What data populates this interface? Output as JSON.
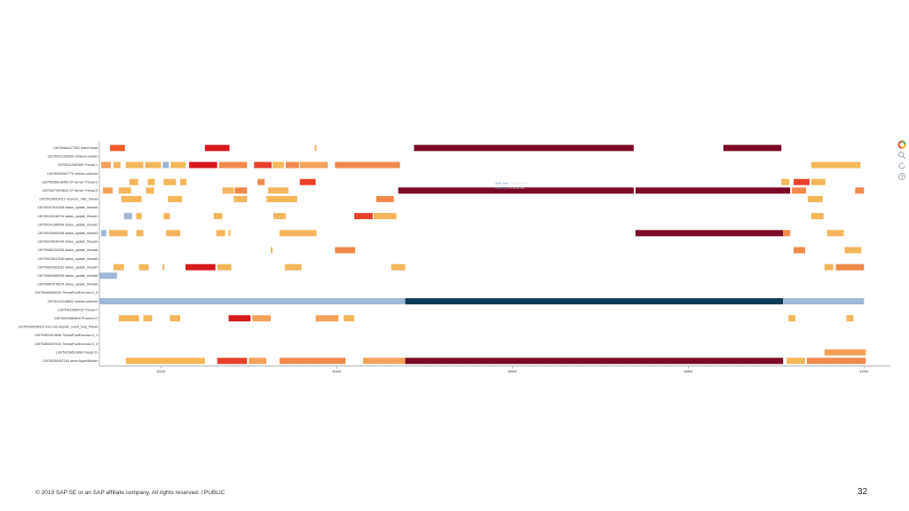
{
  "chart_data": {
    "type": "gantt",
    "xticks": [
      "30200",
      "30400",
      "30600",
      "30800",
      "31000"
    ],
    "xlim": [
      30130,
      31030
    ],
    "rows": [
      "139750664477632 MainThread",
      "139750021153536 inframon-worker",
      "139750312480480 Thread-1",
      "139750093367776 metrics-collector",
      "139750286918400 CP Server Thread-2",
      "139750274929616 CP Server Thread-3",
      "139750286924112 resource_offer_thread",
      "139750207841408 status_update_thread0",
      "139750244448704 status_update_thread1",
      "139750241385008 status_update_thread2",
      "139750230852096 status_update_thread3",
      "139750476039744 status_update_thread4",
      "139754680254336 status_update_thread6",
      "139754676647040 status_update_thread5",
      "139754802981632 status_update_thread7",
      "139754804068928 status_update_thread8",
      "139754807078224 status_update_thread9",
      "139750463963200 ThreadPoolExecutor-0_0",
      "139754141168832 metrics-collector",
      "139754115665720 Thread-7",
      "139750510669616 Process-IO",
      "139754106058310 bolt.core.asyncio_event_loop_thread",
      "139754591613696 ThreadPoolExecutor-0_1",
      "139754800297920 ThreadPoolExecutor-0_3",
      "139750258510808 Thread-11",
      "139750350057184 raven.AsyncWorker"
    ],
    "tasks": [
      {
        "row": 0,
        "start": 30142,
        "end": 30159,
        "c": "#ef5b2b"
      },
      {
        "row": 0,
        "start": 30250,
        "end": 30278,
        "c": "#d7191c"
      },
      {
        "row": 0,
        "start": 30375,
        "end": 30377,
        "c": "#f4b65a"
      },
      {
        "row": 0,
        "start": 30488,
        "end": 30738,
        "c": "#7a0a26"
      },
      {
        "row": 0,
        "start": 30840,
        "end": 30906,
        "c": "#7a0a26"
      },
      {
        "row": 2,
        "start": 30132,
        "end": 30143,
        "c": "#f4a259"
      },
      {
        "row": 2,
        "start": 30146,
        "end": 30154,
        "c": "#f4b65a"
      },
      {
        "row": 2,
        "start": 30160,
        "end": 30180,
        "c": "#f4b65a"
      },
      {
        "row": 2,
        "start": 30182,
        "end": 30200,
        "c": "#f4b65a"
      },
      {
        "row": 2,
        "start": 30202,
        "end": 30209,
        "c": "#9fb8d5"
      },
      {
        "row": 2,
        "start": 30211,
        "end": 30228,
        "c": "#f4b65a"
      },
      {
        "row": 2,
        "start": 30232,
        "end": 30264,
        "c": "#d7191c"
      },
      {
        "row": 2,
        "start": 30266,
        "end": 30298,
        "c": "#f08a4b"
      },
      {
        "row": 2,
        "start": 30306,
        "end": 30326,
        "c": "#e8412b"
      },
      {
        "row": 2,
        "start": 30327,
        "end": 30340,
        "c": "#f4b65a"
      },
      {
        "row": 2,
        "start": 30342,
        "end": 30357,
        "c": "#f08a4b"
      },
      {
        "row": 2,
        "start": 30358,
        "end": 30390,
        "c": "#f4a259"
      },
      {
        "row": 2,
        "start": 30398,
        "end": 30472,
        "c": "#f08a4b"
      },
      {
        "row": 2,
        "start": 30940,
        "end": 30996,
        "c": "#f4b65a"
      },
      {
        "row": 4,
        "start": 30164,
        "end": 30174,
        "c": "#f4b65a"
      },
      {
        "row": 4,
        "start": 30185,
        "end": 30193,
        "c": "#f4b65a"
      },
      {
        "row": 4,
        "start": 30203,
        "end": 30217,
        "c": "#f4b65a"
      },
      {
        "row": 4,
        "start": 30222,
        "end": 30229,
        "c": "#f4b65a"
      },
      {
        "row": 4,
        "start": 30310,
        "end": 30318,
        "c": "#f08a4b"
      },
      {
        "row": 4,
        "start": 30358,
        "end": 30376,
        "c": "#e8412b"
      },
      {
        "row": 4,
        "start": 30906,
        "end": 30915,
        "c": "#f4b65a"
      },
      {
        "row": 4,
        "start": 30920,
        "end": 30938,
        "c": "#e8412b"
      },
      {
        "row": 4,
        "start": 30940,
        "end": 30956,
        "c": "#f4b65a"
      },
      {
        "row": 5,
        "start": 30134,
        "end": 30145,
        "c": "#f4a259"
      },
      {
        "row": 5,
        "start": 30152,
        "end": 30166,
        "c": "#f4b65a"
      },
      {
        "row": 5,
        "start": 30183,
        "end": 30192,
        "c": "#f4b65a"
      },
      {
        "row": 5,
        "start": 30270,
        "end": 30283,
        "c": "#f4b65a"
      },
      {
        "row": 5,
        "start": 30284,
        "end": 30298,
        "c": "#f08a4b"
      },
      {
        "row": 5,
        "start": 30322,
        "end": 30345,
        "c": "#f4b65a"
      },
      {
        "row": 5,
        "start": 30470,
        "end": 30738,
        "c": "#7a0a26"
      },
      {
        "row": 5,
        "start": 30740,
        "end": 30916,
        "c": "#7a0a26"
      },
      {
        "row": 5,
        "start": 30918,
        "end": 30934,
        "c": "#f08a4b"
      },
      {
        "row": 5,
        "start": 30990,
        "end": 31000,
        "c": "#f08a4b"
      },
      {
        "row": 6,
        "start": 30155,
        "end": 30178,
        "c": "#f4b65a"
      },
      {
        "row": 6,
        "start": 30208,
        "end": 30224,
        "c": "#f4b65a"
      },
      {
        "row": 6,
        "start": 30283,
        "end": 30298,
        "c": "#f4b65a"
      },
      {
        "row": 6,
        "start": 30320,
        "end": 30355,
        "c": "#f4b65a"
      },
      {
        "row": 6,
        "start": 30445,
        "end": 30465,
        "c": "#f08a4b"
      },
      {
        "row": 6,
        "start": 30936,
        "end": 30953,
        "c": "#f4b65a"
      },
      {
        "row": 8,
        "start": 30158,
        "end": 30167,
        "c": "#9fb8d5"
      },
      {
        "row": 8,
        "start": 30172,
        "end": 30178,
        "c": "#f4b65a"
      },
      {
        "row": 8,
        "start": 30203,
        "end": 30210,
        "c": "#f4b65a"
      },
      {
        "row": 8,
        "start": 30260,
        "end": 30270,
        "c": "#f4b65a"
      },
      {
        "row": 8,
        "start": 30328,
        "end": 30342,
        "c": "#f4b65a"
      },
      {
        "row": 8,
        "start": 30420,
        "end": 30441,
        "c": "#e8412b"
      },
      {
        "row": 8,
        "start": 30442,
        "end": 30468,
        "c": "#f4b65a"
      },
      {
        "row": 8,
        "start": 30940,
        "end": 30954,
        "c": "#f4b65a"
      },
      {
        "row": 10,
        "start": 30132,
        "end": 30138,
        "c": "#9fb8d5"
      },
      {
        "row": 10,
        "start": 30141,
        "end": 30162,
        "c": "#f4b65a"
      },
      {
        "row": 10,
        "start": 30172,
        "end": 30180,
        "c": "#f4b65a"
      },
      {
        "row": 10,
        "start": 30206,
        "end": 30222,
        "c": "#f4b65a"
      },
      {
        "row": 10,
        "start": 30263,
        "end": 30273,
        "c": "#f4b65a"
      },
      {
        "row": 10,
        "start": 30277,
        "end": 30279,
        "c": "#f4b65a"
      },
      {
        "row": 10,
        "start": 30335,
        "end": 30377,
        "c": "#f4b65a"
      },
      {
        "row": 10,
        "start": 30740,
        "end": 30908,
        "c": "#7a0a26"
      },
      {
        "row": 10,
        "start": 30908,
        "end": 30916,
        "c": "#f08a4b"
      },
      {
        "row": 10,
        "start": 30958,
        "end": 30977,
        "c": "#f4b65a"
      },
      {
        "row": 12,
        "start": 30325,
        "end": 30327,
        "c": "#f4b65a"
      },
      {
        "row": 12,
        "start": 30398,
        "end": 30421,
        "c": "#f08a4b"
      },
      {
        "row": 12,
        "start": 30920,
        "end": 30933,
        "c": "#f08a4b"
      },
      {
        "row": 12,
        "start": 30978,
        "end": 30997,
        "c": "#f4b65a"
      },
      {
        "row": 14,
        "start": 30146,
        "end": 30158,
        "c": "#f4b65a"
      },
      {
        "row": 14,
        "start": 30175,
        "end": 30186,
        "c": "#f4b65a"
      },
      {
        "row": 14,
        "start": 30202,
        "end": 30204,
        "c": "#f4b65a"
      },
      {
        "row": 14,
        "start": 30228,
        "end": 30262,
        "c": "#d7191c"
      },
      {
        "row": 14,
        "start": 30264,
        "end": 30280,
        "c": "#f4b65a"
      },
      {
        "row": 14,
        "start": 30341,
        "end": 30360,
        "c": "#f4b65a"
      },
      {
        "row": 14,
        "start": 30462,
        "end": 30478,
        "c": "#f4b65a"
      },
      {
        "row": 14,
        "start": 30955,
        "end": 30965,
        "c": "#f4b65a"
      },
      {
        "row": 14,
        "start": 30968,
        "end": 31000,
        "c": "#f08a4b"
      },
      {
        "row": 15,
        "start": 30130,
        "end": 30150,
        "c": "#9fb8d5"
      },
      {
        "row": 18,
        "start": 30130,
        "end": 30478,
        "c": "#9fb8d5"
      },
      {
        "row": 18,
        "start": 30478,
        "end": 30908,
        "c": "#0d3a57"
      },
      {
        "row": 18,
        "start": 30908,
        "end": 31000,
        "c": "#9fb8d5"
      },
      {
        "row": 20,
        "start": 30152,
        "end": 30175,
        "c": "#f4b65a"
      },
      {
        "row": 20,
        "start": 30180,
        "end": 30190,
        "c": "#f4b65a"
      },
      {
        "row": 20,
        "start": 30210,
        "end": 30222,
        "c": "#f4b65a"
      },
      {
        "row": 20,
        "start": 30277,
        "end": 30302,
        "c": "#d7191c"
      },
      {
        "row": 20,
        "start": 30304,
        "end": 30325,
        "c": "#f4a259"
      },
      {
        "row": 20,
        "start": 30376,
        "end": 30402,
        "c": "#f4a259"
      },
      {
        "row": 20,
        "start": 30408,
        "end": 30420,
        "c": "#f4b65a"
      },
      {
        "row": 20,
        "start": 30914,
        "end": 30922,
        "c": "#f4b65a"
      },
      {
        "row": 20,
        "start": 30980,
        "end": 30988,
        "c": "#f4b65a"
      },
      {
        "row": 24,
        "start": 30955,
        "end": 31002,
        "c": "#f4a259"
      },
      {
        "row": 25,
        "start": 30160,
        "end": 30250,
        "c": "#f4b65a"
      },
      {
        "row": 25,
        "start": 30264,
        "end": 30298,
        "c": "#e8412b"
      },
      {
        "row": 25,
        "start": 30300,
        "end": 30320,
        "c": "#f4a259"
      },
      {
        "row": 25,
        "start": 30335,
        "end": 30410,
        "c": "#f08a4b"
      },
      {
        "row": 25,
        "start": 30430,
        "end": 30478,
        "c": "#f4a259"
      },
      {
        "row": 25,
        "start": 30478,
        "end": 30908,
        "c": "#7a0a26"
      },
      {
        "row": 25,
        "start": 30912,
        "end": 30933,
        "c": "#f4b65a"
      },
      {
        "row": 25,
        "start": 30935,
        "end": 31002,
        "c": "#f08a4b"
      }
    ],
    "tooltip": {
      "label1": "Wall time",
      "value1": "234.8069 ms",
      "label2": "Hold time",
      "value2": "0.1214 ms"
    }
  },
  "icons": [
    "color-wheel-icon",
    "zoom-icon",
    "reset-icon",
    "help-icon"
  ],
  "footer": {
    "text": "© 2019 SAP SE or an SAP affiliate company. All rights reserved.   ǀ   PUBLIC",
    "page": "32"
  }
}
